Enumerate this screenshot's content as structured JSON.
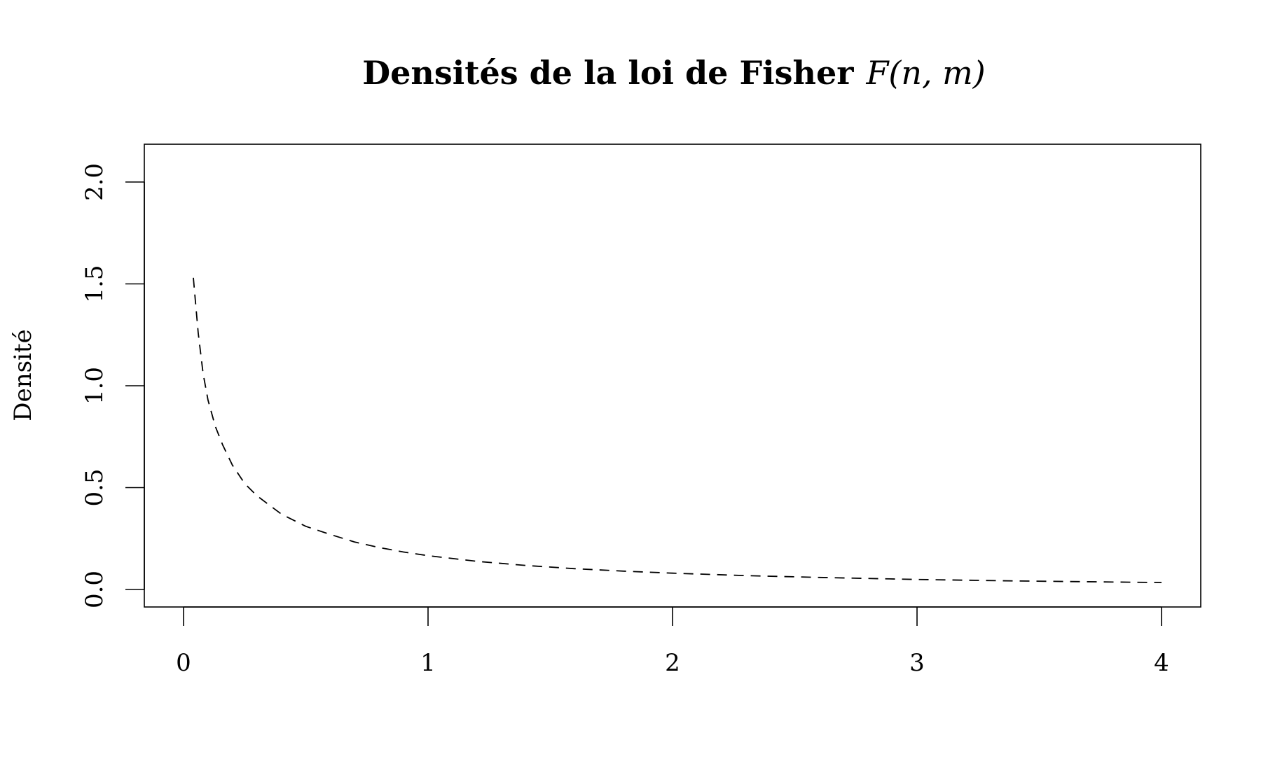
{
  "chart_data": {
    "type": "line",
    "title": "Densités de la loi de Fisher",
    "title_math": "F(n, m)",
    "xlabel": "",
    "ylabel": "Densité",
    "xlim": [
      0,
      4
    ],
    "ylim": [
      0,
      2
    ],
    "x_ticks": [
      "0",
      "1",
      "2",
      "3",
      "4"
    ],
    "y_ticks": [
      "0.0",
      "0.5",
      "1.0",
      "1.5",
      "2.0"
    ],
    "grid": false,
    "line_style": "dashed",
    "line_color": "#000000",
    "series": [
      {
        "x": [
          0.04,
          0.06,
          0.08,
          0.1,
          0.13,
          0.16,
          0.2,
          0.25,
          0.3,
          0.4,
          0.5,
          0.6,
          0.7,
          0.8,
          0.9,
          1.0,
          1.2,
          1.4,
          1.6,
          1.8,
          2.0,
          2.3,
          2.6,
          3.0,
          3.4,
          4.0
        ],
        "y": [
          1.53,
          1.26,
          1.06,
          0.93,
          0.8,
          0.71,
          0.61,
          0.52,
          0.46,
          0.37,
          0.31,
          0.27,
          0.233,
          0.206,
          0.184,
          0.166,
          0.138,
          0.118,
          0.102,
          0.09,
          0.08,
          0.068,
          0.059,
          0.049,
          0.042,
          0.034
        ]
      }
    ]
  }
}
